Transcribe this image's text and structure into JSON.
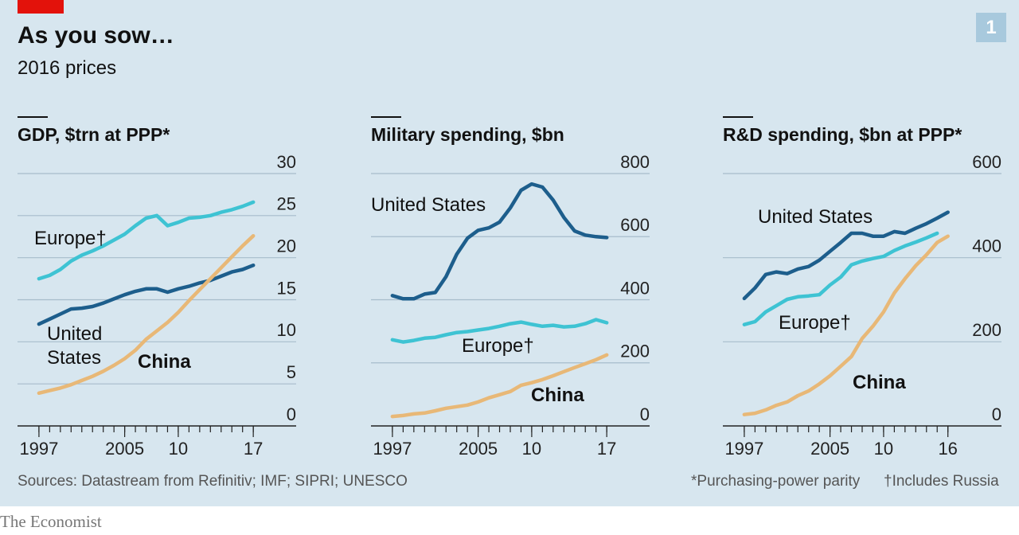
{
  "header": {
    "title": "As you sow…",
    "subtitle": "2016 prices",
    "badge": "1"
  },
  "chart_data": [
    {
      "type": "line",
      "title": "GDP, $trn at PPP*",
      "x": [
        1997,
        1998,
        1999,
        2000,
        2001,
        2002,
        2003,
        2004,
        2005,
        2006,
        2007,
        2008,
        2009,
        2010,
        2011,
        2012,
        2013,
        2014,
        2015,
        2016,
        2017
      ],
      "xlim": [
        1995,
        2021
      ],
      "xticks": [
        1997,
        2005,
        {
          "value": 2010,
          "label": "10"
        },
        {
          "value": 2017,
          "label": "17"
        }
      ],
      "ylim": [
        0,
        30
      ],
      "yticks": [
        0,
        5,
        10,
        15,
        20,
        25,
        30
      ],
      "grid": true,
      "series": [
        {
          "name": "United States",
          "color": "#1d5e8c",
          "values": [
            12.1,
            12.7,
            13.3,
            13.9,
            14.0,
            14.2,
            14.6,
            15.1,
            15.6,
            16.0,
            16.3,
            16.3,
            15.9,
            16.3,
            16.6,
            17.0,
            17.3,
            17.8,
            18.3,
            18.6,
            19.1
          ]
        },
        {
          "name": "Europe†",
          "color": "#3ec3d3",
          "values": [
            17.5,
            17.9,
            18.6,
            19.6,
            20.3,
            20.8,
            21.4,
            22.1,
            22.8,
            23.8,
            24.7,
            25.0,
            23.8,
            24.2,
            24.7,
            24.8,
            25.0,
            25.4,
            25.7,
            26.1,
            26.6
          ]
        },
        {
          "name": "China",
          "color": "#e8b877",
          "values": [
            3.9,
            4.2,
            4.5,
            4.9,
            5.4,
            5.9,
            6.5,
            7.2,
            8.0,
            9.0,
            10.3,
            11.3,
            12.3,
            13.5,
            14.9,
            16.2,
            17.5,
            18.8,
            20.1,
            21.4,
            22.6
          ]
        }
      ]
    },
    {
      "type": "line",
      "title": "Military spending, $bn",
      "x": [
        1997,
        1998,
        1999,
        2000,
        2001,
        2002,
        2003,
        2004,
        2005,
        2006,
        2007,
        2008,
        2009,
        2010,
        2011,
        2012,
        2013,
        2014,
        2015,
        2016,
        2017
      ],
      "xlim": [
        1995,
        2021
      ],
      "xticks": [
        1997,
        2005,
        {
          "value": 2010,
          "label": "10"
        },
        {
          "value": 2017,
          "label": "17"
        }
      ],
      "ylim": [
        0,
        800
      ],
      "yticks": [
        0,
        200,
        400,
        600,
        800
      ],
      "grid": true,
      "series": [
        {
          "name": "United States",
          "color": "#1d5e8c",
          "values": [
            413,
            403,
            403,
            418,
            423,
            473,
            544,
            595,
            620,
            628,
            646,
            691,
            747,
            767,
            757,
            716,
            661,
            618,
            605,
            600,
            597
          ]
        },
        {
          "name": "Europe†",
          "color": "#3ec3d3",
          "values": [
            273,
            266,
            271,
            278,
            281,
            289,
            296,
            299,
            304,
            309,
            316,
            324,
            329,
            322,
            316,
            319,
            314,
            316,
            324,
            337,
            327
          ]
        },
        {
          "name": "China",
          "color": "#e8b877",
          "values": [
            30,
            33,
            38,
            41,
            48,
            56,
            61,
            66,
            76,
            89,
            99,
            109,
            129,
            137,
            147,
            159,
            172,
            185,
            197,
            210,
            225
          ]
        }
      ]
    },
    {
      "type": "line",
      "title": "R&D spending, $bn at PPP*",
      "x": [
        1997,
        1998,
        1999,
        2000,
        2001,
        2002,
        2003,
        2004,
        2005,
        2006,
        2007,
        2008,
        2009,
        2010,
        2011,
        2012,
        2013,
        2014,
        2015,
        2016
      ],
      "xlim": [
        1995,
        2021
      ],
      "xticks": [
        1997,
        2005,
        {
          "value": 2010,
          "label": "10"
        },
        {
          "value": 2016,
          "label": "16"
        }
      ],
      "ylim": [
        0,
        600
      ],
      "yticks": [
        0,
        200,
        400,
        600
      ],
      "grid": true,
      "series": [
        {
          "name": "United States",
          "color": "#1d5e8c",
          "values": [
            303,
            328,
            360,
            366,
            362,
            373,
            379,
            394,
            415,
            436,
            458,
            458,
            451,
            451,
            462,
            458,
            470,
            481,
            494,
            508
          ]
        },
        {
          "name": "Europe†",
          "color": "#3ec3d3",
          "values": [
            241,
            248,
            271,
            286,
            301,
            307,
            309,
            312,
            335,
            354,
            383,
            392,
            398,
            403,
            417,
            428,
            437,
            447,
            458,
            null
          ]
        },
        {
          "name": "China",
          "color": "#e8b877",
          "values": [
            27,
            30,
            38,
            49,
            57,
            72,
            83,
            100,
            119,
            142,
            165,
            208,
            237,
            271,
            316,
            350,
            381,
            407,
            436,
            451
          ]
        }
      ]
    }
  ],
  "footer": {
    "sources": "Sources: Datastream from Refinitiv; IMF; SIPRI; UNESCO",
    "note": "*Purchasing-power parity",
    "note2": "†Includes Russia",
    "brand": "The Economist"
  }
}
